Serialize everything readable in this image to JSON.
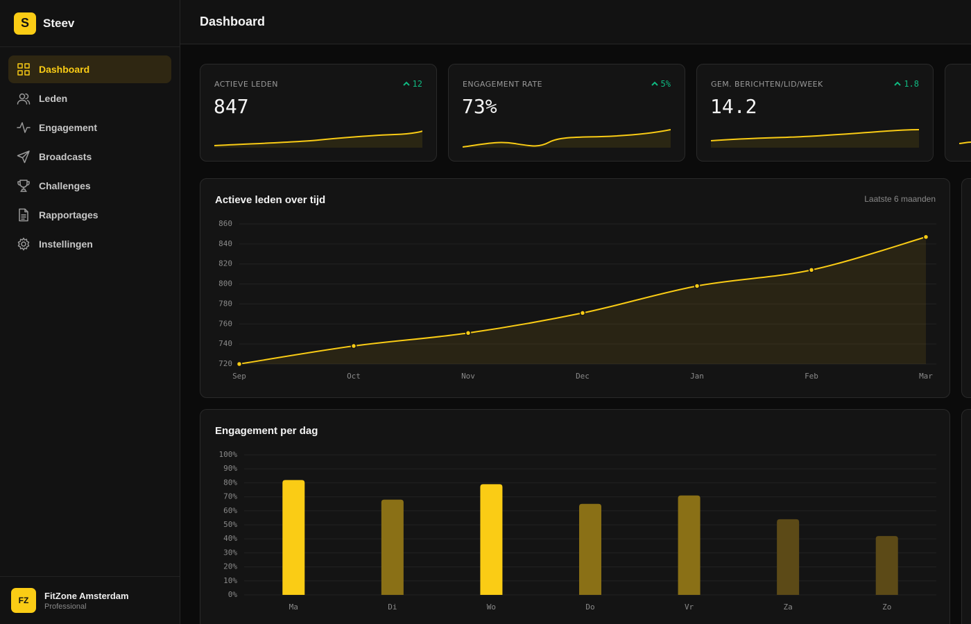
{
  "sidebar": {
    "logo": "S",
    "brand": "Steev",
    "nav": [
      "Dashboard",
      "Leden",
      "Engagement",
      "Broadcasts",
      "Challenges",
      "Rapportages",
      "Instellingen"
    ],
    "account": {
      "initials": "FZ",
      "name": "FitZone Amsterdam",
      "plan": "Professional"
    }
  },
  "header": {
    "title": "Dashboard"
  },
  "kpis": [
    {
      "label": "ACTIEVE LEDEN",
      "value": "847",
      "delta": "12"
    },
    {
      "label": "ENGAGEMENT RATE",
      "value": "73%",
      "delta": "5%"
    },
    {
      "label": "GEM. BERICHTEN/LID/WEEK",
      "value": "14.2",
      "delta": "1.8"
    }
  ],
  "line_chart": {
    "type": "line",
    "title": "Actieve leden over tijd",
    "subtitle": "Laatste 6 maanden",
    "categories": [
      "Sep",
      "Oct",
      "Nov",
      "Dec",
      "Jan",
      "Feb",
      "Mar"
    ],
    "values": [
      720,
      738,
      751,
      771,
      798,
      814,
      847
    ],
    "color": "#facc15",
    "ylim": [
      720,
      860
    ],
    "yticks": [
      720,
      740,
      760,
      780,
      800,
      820,
      840,
      860
    ],
    "grid": true
  },
  "bar_chart": {
    "type": "bar",
    "title": "Engagement per dag",
    "categories": [
      "Ma",
      "Di",
      "Wo",
      "Do",
      "Vr",
      "Za",
      "Zo"
    ],
    "values": [
      82,
      68,
      79,
      65,
      71,
      54,
      42
    ],
    "colors": [
      "#facc15",
      "#8a7016",
      "#facc15",
      "#8a7016",
      "#8a7016",
      "#5c4a17",
      "#5c4a17"
    ],
    "ylim": [
      0,
      100
    ],
    "yticks": [
      {
        "value": 0,
        "label": "0%"
      },
      {
        "value": 10,
        "label": "10%"
      },
      {
        "value": 20,
        "label": "20%"
      },
      {
        "value": 30,
        "label": "30%"
      },
      {
        "value": 40,
        "label": "40%"
      },
      {
        "value": 50,
        "label": "50%"
      },
      {
        "value": 60,
        "label": "60%"
      },
      {
        "value": 70,
        "label": "70%"
      },
      {
        "value": 80,
        "label": "80%"
      },
      {
        "value": 90,
        "label": "90%"
      },
      {
        "value": 100,
        "label": "100%"
      }
    ],
    "grid": true
  }
}
